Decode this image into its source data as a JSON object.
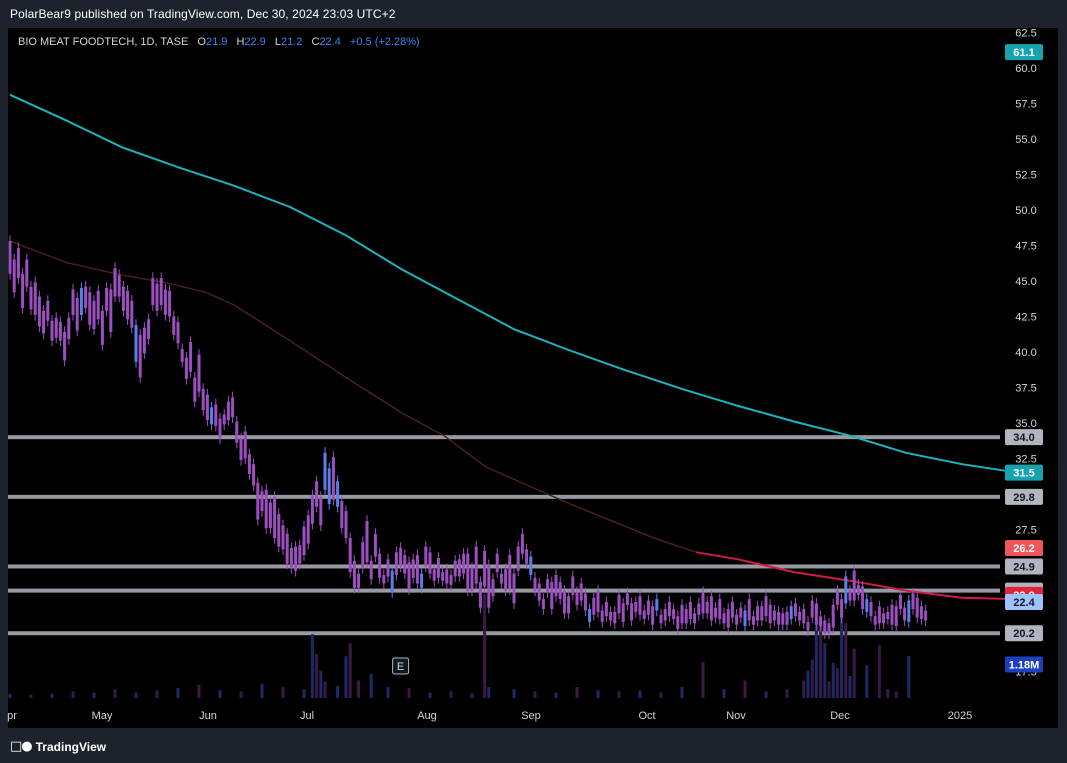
{
  "publisher": {
    "text": "PolarBear9 published on TradingView.com, Dec 30, 2024 23:03 UTC+2"
  },
  "legend": {
    "symbol": "BIO MEAT FOODTECH, 1D, TASE",
    "o_label": "O",
    "o_value": "21.9",
    "h_label": "H",
    "h_value": "22.9",
    "l_label": "L",
    "l_value": "21.2",
    "c_label": "C",
    "c_value": "22.4",
    "change": "+0.5 (+2.28%)"
  },
  "footer": {
    "brand": "TradingView"
  },
  "earnings_marker": "E",
  "colors": {
    "background": "#000000",
    "candle": "#9c4fbf",
    "candle_up": "#5b7fe6",
    "ma200": "#1fb3bd",
    "ma50": "#4a1f1f",
    "ma50_recent": "#d11a4a",
    "hline": "#b2b5be",
    "volume": "#1c2a66",
    "volume_alt": "#3a1946"
  },
  "chart_data": {
    "type": "candlestick",
    "title": "BIO MEAT FOODTECH, 1D, TASE",
    "ylim": [
      15.5,
      62.8
    ],
    "y_ticks": [
      "17.5",
      "20.0",
      "22.5",
      "25.0",
      "27.5",
      "30.0",
      "32.5",
      "35.0",
      "37.5",
      "40.0",
      "42.5",
      "45.0",
      "47.5",
      "50.0",
      "52.5",
      "55.0",
      "57.5",
      "60.0",
      "62.5"
    ],
    "x_tick_labels": [
      "pr",
      "May",
      "Jun",
      "Jul",
      "Aug",
      "Sep",
      "Oct",
      "Nov",
      "Dec",
      "2025"
    ],
    "horizontal_levels": [
      34.0,
      29.8,
      24.9,
      23.2,
      20.2
    ],
    "price_badges": [
      {
        "label": "61.1",
        "value": 61.1,
        "color": "#17a2b0"
      },
      {
        "label": "34.0",
        "value": 34.0,
        "color": "#b2b5be"
      },
      {
        "label": "31.5",
        "value": 31.5,
        "color": "#17a2b0"
      },
      {
        "label": "29.8",
        "value": 29.8,
        "color": "#b2b5be"
      },
      {
        "label": "26.2",
        "value": 26.2,
        "color": "#f0555a"
      },
      {
        "label": "24.9",
        "value": 24.9,
        "color": "#b2b5be"
      },
      {
        "label": "23.2",
        "value": 23.2,
        "color": "#b2b5be"
      },
      {
        "label": "22.9",
        "value": 22.9,
        "color": "#e0243c"
      },
      {
        "label": "22.4",
        "value": 22.4,
        "color": "#9ec2ff"
      },
      {
        "label": "20.2",
        "value": 20.2,
        "color": "#b2b5be"
      },
      {
        "label": "1.18M",
        "value": 18.0,
        "color": "#1e3fc0"
      }
    ],
    "ma200": [
      [
        0,
        58.1
      ],
      [
        40,
        56.3
      ],
      [
        80,
        54.4
      ],
      [
        120,
        53.0
      ],
      [
        160,
        51.7
      ],
      [
        200,
        50.2
      ],
      [
        240,
        48.2
      ],
      [
        280,
        45.8
      ],
      [
        320,
        43.7
      ],
      [
        360,
        41.6
      ],
      [
        400,
        40.1
      ],
      [
        440,
        38.7
      ],
      [
        480,
        37.4
      ],
      [
        520,
        36.2
      ],
      [
        560,
        35.1
      ],
      [
        600,
        34.1
      ],
      [
        640,
        32.9
      ],
      [
        680,
        32.1
      ],
      [
        720,
        31.5
      ]
    ],
    "ma50": [
      [
        0,
        47.8
      ],
      [
        40,
        46.3
      ],
      [
        80,
        45.4
      ],
      [
        110,
        44.9
      ],
      [
        140,
        44.2
      ],
      [
        160,
        43.3
      ],
      [
        200,
        40.8
      ],
      [
        240,
        38.2
      ],
      [
        280,
        35.7
      ],
      [
        310,
        34.1
      ],
      [
        340,
        31.9
      ],
      [
        370,
        30.6
      ],
      [
        400,
        29.3
      ],
      [
        430,
        28.1
      ],
      [
        460,
        26.9
      ],
      [
        490,
        25.9
      ],
      [
        520,
        25.4
      ],
      [
        560,
        24.5
      ],
      [
        600,
        23.9
      ],
      [
        640,
        23.2
      ],
      [
        680,
        22.7
      ],
      [
        720,
        22.6
      ]
    ],
    "ma50_recent_from_day": 500,
    "candles": [
      [
        0,
        47.8,
        45.5
      ],
      [
        3,
        46.5,
        44.2
      ],
      [
        6,
        47.3,
        45.2
      ],
      [
        9,
        45.5,
        43.1
      ],
      [
        12,
        46.5,
        44.6
      ],
      [
        15,
        44.6,
        43.0
      ],
      [
        18,
        44.9,
        42.6
      ],
      [
        21,
        43.9,
        41.8
      ],
      [
        24,
        42.9,
        41.3
      ],
      [
        27,
        43.6,
        42.2
      ],
      [
        30,
        42.2,
        40.8
      ],
      [
        33,
        42.4,
        41.0
      ],
      [
        36,
        42.1,
        40.8
      ],
      [
        39,
        41.4,
        39.4
      ],
      [
        42,
        42.4,
        40.9
      ],
      [
        45,
        44.4,
        42.6
      ],
      [
        48,
        43.8,
        41.5
      ],
      [
        51,
        44.5,
        42.6
      ],
      [
        54,
        44.6,
        43.1
      ],
      [
        57,
        44.2,
        41.9
      ],
      [
        60,
        43.6,
        41.6
      ],
      [
        63,
        44.3,
        42.3
      ],
      [
        66,
        42.9,
        40.5
      ],
      [
        69,
        44.5,
        42.9
      ],
      [
        72,
        44.4,
        41.4
      ],
      [
        75,
        45.9,
        43.9
      ],
      [
        78,
        45.4,
        43.9
      ],
      [
        81,
        44.6,
        42.9
      ],
      [
        84,
        44.3,
        42.3
      ],
      [
        87,
        43.6,
        41.7
      ],
      [
        90,
        41.9,
        39.3
      ],
      [
        93,
        41.2,
        38.2
      ],
      [
        96,
        41.7,
        39.9
      ],
      [
        99,
        42.3,
        40.9
      ],
      [
        102,
        45.2,
        43.3
      ],
      [
        105,
        44.8,
        42.9
      ],
      [
        108,
        45.2,
        43.3
      ],
      [
        111,
        44.4,
        42.6
      ],
      [
        114,
        44.3,
        42.5
      ],
      [
        117,
        42.5,
        41.2
      ],
      [
        120,
        42.1,
        40.6
      ],
      [
        123,
        40.2,
        39.3
      ],
      [
        126,
        39.6,
        38.1
      ],
      [
        129,
        40.7,
        38.6
      ],
      [
        132,
        38.2,
        36.5
      ],
      [
        135,
        39.8,
        37.2
      ],
      [
        138,
        37.4,
        35.9
      ],
      [
        141,
        37.0,
        35.2
      ],
      [
        144,
        36.1,
        34.9
      ],
      [
        147,
        36.3,
        34.8
      ],
      [
        150,
        35.3,
        33.9
      ],
      [
        153,
        35.6,
        34.9
      ],
      [
        156,
        36.5,
        35.2
      ],
      [
        159,
        36.8,
        35.4
      ],
      [
        162,
        35.1,
        33.6
      ],
      [
        165,
        33.9,
        32.4
      ],
      [
        168,
        34.4,
        32.5
      ],
      [
        171,
        32.8,
        31.4
      ],
      [
        174,
        32.1,
        30.6
      ],
      [
        177,
        30.8,
        28.2
      ],
      [
        180,
        30.2,
        28.8
      ],
      [
        183,
        30.3,
        27.6
      ],
      [
        186,
        29.4,
        27.6
      ],
      [
        189,
        29.8,
        26.9
      ],
      [
        192,
        28.6,
        26.3
      ],
      [
        195,
        27.8,
        26.1
      ],
      [
        198,
        27.2,
        25.1
      ],
      [
        201,
        26.2,
        24.8
      ],
      [
        204,
        26.3,
        24.6
      ],
      [
        207,
        26.4,
        25.1
      ],
      [
        210,
        27.7,
        25.7
      ],
      [
        213,
        28.5,
        26.5
      ],
      [
        216,
        29.9,
        27.9
      ],
      [
        219,
        30.9,
        29.1
      ],
      [
        222,
        29.8,
        27.8
      ],
      [
        225,
        32.9,
        30.3
      ],
      [
        228,
        31.8,
        29.3
      ],
      [
        231,
        32.6,
        29.6
      ],
      [
        234,
        30.9,
        29.1
      ],
      [
        237,
        29.5,
        27.6
      ],
      [
        240,
        28.8,
        26.9
      ],
      [
        243,
        26.9,
        24.5
      ],
      [
        246,
        25.3,
        23.4
      ],
      [
        249,
        24.4,
        23.4
      ],
      [
        252,
        26.6,
        24.8
      ],
      [
        255,
        28.1,
        25.2
      ],
      [
        258,
        25.3,
        24.0
      ],
      [
        261,
        27.2,
        25.6
      ],
      [
        264,
        25.8,
        24.1
      ],
      [
        267,
        24.3,
        23.7
      ],
      [
        270,
        25.4,
        24.2
      ],
      [
        273,
        24.6,
        23.1
      ],
      [
        276,
        25.9,
        24.3
      ],
      [
        279,
        26.2,
        24.9
      ],
      [
        282,
        25.7,
        24.4
      ],
      [
        285,
        25.2,
        23.3
      ],
      [
        288,
        25.4,
        24.1
      ],
      [
        291,
        25.7,
        23.7
      ],
      [
        294,
        24.4,
        23.4
      ],
      [
        297,
        26.3,
        24.9
      ],
      [
        300,
        25.9,
        24.4
      ],
      [
        303,
        24.7,
        23.9
      ],
      [
        306,
        25.5,
        24.1
      ],
      [
        309,
        24.5,
        23.9
      ],
      [
        312,
        24.7,
        23.7
      ],
      [
        315,
        24.3,
        23.6
      ],
      [
        318,
        25.3,
        24.2
      ],
      [
        321,
        25.4,
        24.2
      ],
      [
        324,
        25.8,
        24.4
      ],
      [
        327,
        25.8,
        23.2
      ],
      [
        330,
        24.8,
        23.2
      ],
      [
        333,
        26.3,
        23.7
      ],
      [
        336,
        23.8,
        22.0
      ],
      [
        339,
        26.0,
        23.5
      ],
      [
        342,
        25.0,
        22.0
      ],
      [
        345,
        24.0,
        22.8
      ],
      [
        348,
        25.8,
        24.5
      ],
      [
        351,
        24.4,
        23.7
      ],
      [
        354,
        24.7,
        23.2
      ],
      [
        357,
        25.7,
        23.3
      ],
      [
        360,
        24.4,
        22.3
      ],
      [
        363,
        26.3,
        24.6
      ],
      [
        366,
        27.2,
        25.8
      ],
      [
        369,
        26.1,
        25.1
      ],
      [
        372,
        25.6,
        24.3
      ],
      [
        375,
        24.1,
        23.2
      ],
      [
        378,
        23.7,
        22.5
      ],
      [
        381,
        22.6,
        21.9
      ],
      [
        384,
        24.0,
        23.1
      ],
      [
        387,
        23.8,
        21.9
      ],
      [
        390,
        24.3,
        22.8
      ],
      [
        393,
        23.8,
        22.6
      ],
      [
        396,
        23.2,
        21.6
      ],
      [
        399,
        22.8,
        21.6
      ],
      [
        402,
        24.2,
        22.9
      ],
      [
        405,
        23.1,
        22.2
      ],
      [
        408,
        23.7,
        22.5
      ],
      [
        411,
        23.0,
        21.8
      ],
      [
        414,
        21.9,
        21.0
      ],
      [
        417,
        22.7,
        21.5
      ],
      [
        420,
        23.2,
        21.7
      ],
      [
        423,
        21.8,
        21.0
      ],
      [
        426,
        22.4,
        21.4
      ],
      [
        429,
        21.7,
        21.1
      ],
      [
        432,
        21.7,
        20.9
      ],
      [
        435,
        22.9,
        21.6
      ],
      [
        438,
        22.3,
        21.0
      ],
      [
        441,
        23.0,
        22.2
      ],
      [
        444,
        22.3,
        21.1
      ],
      [
        447,
        22.4,
        21.7
      ],
      [
        450,
        22.8,
        21.5
      ],
      [
        453,
        21.8,
        21.2
      ],
      [
        456,
        22.5,
        21.5
      ],
      [
        459,
        22.1,
        20.8
      ],
      [
        462,
        22.6,
        21.8
      ],
      [
        465,
        21.5,
        20.9
      ],
      [
        468,
        21.9,
        21.1
      ],
      [
        471,
        22.4,
        21.4
      ],
      [
        474,
        21.9,
        21.2
      ],
      [
        477,
        21.4,
        20.5
      ],
      [
        480,
        22.2,
        20.9
      ],
      [
        483,
        21.9,
        20.9
      ],
      [
        486,
        22.4,
        21.2
      ],
      [
        489,
        21.6,
        20.9
      ],
      [
        492,
        22.3,
        21.5
      ],
      [
        495,
        23.1,
        21.6
      ],
      [
        498,
        22.4,
        21.6
      ],
      [
        501,
        22.8,
        21.1
      ],
      [
        504,
        22.0,
        21.3
      ],
      [
        507,
        22.6,
        21.2
      ],
      [
        510,
        21.6,
        20.9
      ],
      [
        513,
        21.9,
        20.6
      ],
      [
        516,
        22.4,
        21.3
      ],
      [
        519,
        21.5,
        20.8
      ],
      [
        522,
        22.0,
        21.3
      ],
      [
        525,
        21.8,
        20.7
      ],
      [
        528,
        22.6,
        21.1
      ],
      [
        531,
        21.4,
        20.8
      ],
      [
        534,
        22.1,
        21.1
      ],
      [
        537,
        22.1,
        21.1
      ],
      [
        540,
        22.8,
        21.4
      ],
      [
        543,
        22.2,
        20.9
      ],
      [
        546,
        21.8,
        21.1
      ],
      [
        549,
        21.7,
        20.8
      ],
      [
        552,
        21.6,
        20.8
      ],
      [
        555,
        21.7,
        20.8
      ],
      [
        558,
        22.1,
        21.2
      ],
      [
        561,
        22.3,
        21.4
      ],
      [
        564,
        21.7,
        21.1
      ],
      [
        567,
        21.9,
        20.9
      ],
      [
        570,
        21.0,
        20.4
      ],
      [
        573,
        22.5,
        21.3
      ],
      [
        576,
        22.3,
        20.8
      ],
      [
        579,
        21.4,
        20.7
      ],
      [
        582,
        21.1,
        20.2
      ],
      [
        585,
        20.9,
        20.2
      ],
      [
        588,
        22.2,
        20.6
      ],
      [
        591,
        23.2,
        22.2
      ],
      [
        594,
        22.6,
        21.3
      ],
      [
        597,
        24.2,
        22.3
      ],
      [
        600,
        23.2,
        22.5
      ],
      [
        603,
        24.6,
        22.5
      ],
      [
        606,
        23.6,
        22.9
      ],
      [
        609,
        23.5,
        21.9
      ],
      [
        612,
        22.6,
        21.7
      ],
      [
        615,
        22.4,
        21.4
      ],
      [
        618,
        21.4,
        20.8
      ],
      [
        621,
        22.1,
        20.9
      ],
      [
        624,
        21.6,
        20.9
      ],
      [
        627,
        21.7,
        21.2
      ],
      [
        630,
        22.2,
        20.8
      ],
      [
        633,
        22.1,
        20.7
      ],
      [
        636,
        22.9,
        21.9
      ],
      [
        639,
        22.0,
        21.1
      ],
      [
        642,
        22.5,
        21.0
      ],
      [
        645,
        23.0,
        21.9
      ],
      [
        648,
        22.7,
        21.3
      ],
      [
        651,
        22.1,
        21.2
      ],
      [
        654,
        21.8,
        21.1
      ]
    ],
    "blue_candle_days": [
      51,
      90,
      144,
      225,
      228,
      234,
      273,
      294,
      372,
      414,
      462,
      525,
      558,
      597,
      612,
      642
    ],
    "volume": [
      [
        0,
        0.4
      ],
      [
        15,
        0.3
      ],
      [
        30,
        0.4
      ],
      [
        45,
        0.6
      ],
      [
        60,
        0.5
      ],
      [
        75,
        0.8
      ],
      [
        90,
        0.5
      ],
      [
        105,
        0.7
      ],
      [
        120,
        0.9
      ],
      [
        135,
        1.2
      ],
      [
        150,
        0.7
      ],
      [
        165,
        0.6
      ],
      [
        180,
        1.3
      ],
      [
        195,
        1.0
      ],
      [
        210,
        0.8
      ],
      [
        216,
        5.8
      ],
      [
        219,
        4.0
      ],
      [
        222,
        2.5
      ],
      [
        225,
        1.5
      ],
      [
        234,
        1.1
      ],
      [
        240,
        3.8
      ],
      [
        243,
        5.0
      ],
      [
        249,
        1.6
      ],
      [
        258,
        2.2
      ],
      [
        270,
        1.0
      ],
      [
        285,
        0.9
      ],
      [
        300,
        0.5
      ],
      [
        315,
        0.6
      ],
      [
        330,
        0.4
      ],
      [
        339,
        9.5
      ],
      [
        342,
        1.0
      ],
      [
        360,
        0.8
      ],
      [
        375,
        0.6
      ],
      [
        390,
        0.5
      ],
      [
        405,
        1.0
      ],
      [
        420,
        0.7
      ],
      [
        435,
        0.6
      ],
      [
        450,
        0.7
      ],
      [
        465,
        0.5
      ],
      [
        480,
        1.0
      ],
      [
        495,
        3.3
      ],
      [
        510,
        0.8
      ],
      [
        525,
        1.6
      ],
      [
        540,
        0.6
      ],
      [
        555,
        0.8
      ],
      [
        567,
        1.6
      ],
      [
        570,
        2.5
      ],
      [
        573,
        3.5
      ],
      [
        576,
        8.4
      ],
      [
        579,
        7.0
      ],
      [
        582,
        5.0
      ],
      [
        585,
        1.5
      ],
      [
        588,
        3.2
      ],
      [
        591,
        2.7
      ],
      [
        594,
        8.5
      ],
      [
        597,
        6.8
      ],
      [
        600,
        2.0
      ],
      [
        603,
        4.5
      ],
      [
        612,
        3.0
      ],
      [
        621,
        4.8
      ],
      [
        627,
        0.8
      ],
      [
        633,
        0.6
      ],
      [
        642,
        3.8
      ]
    ],
    "earnings_marker_day": 279
  }
}
